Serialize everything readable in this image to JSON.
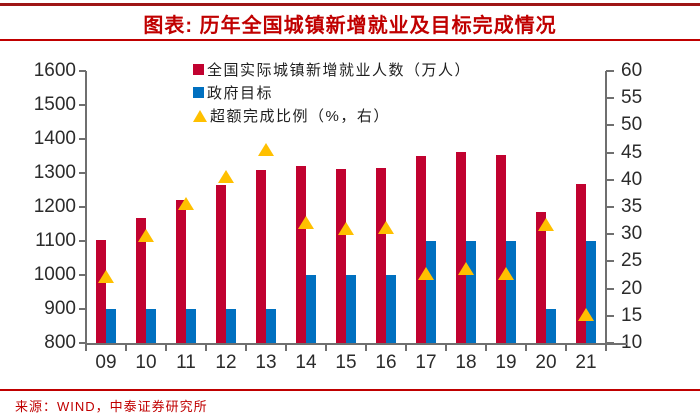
{
  "title": "图表: 历年全国城镇新增就业及目标完成情况",
  "source": "来源：WIND，中泰证券研究所",
  "colors": {
    "actual_bar": "#c10230",
    "target_bar": "#0070c0",
    "ratio_marker": "#ffc000",
    "title_red": "#c00000",
    "axis_gray": "#6f6f6f"
  },
  "chart_data": {
    "type": "bar",
    "title": "图表: 历年全国城镇新增就业及目标完成情况",
    "categories": [
      "09",
      "10",
      "11",
      "12",
      "13",
      "14",
      "15",
      "16",
      "17",
      "18",
      "19",
      "20",
      "21"
    ],
    "series": [
      {
        "name": "全国实际城镇新增就业人数（万人）",
        "type": "bar",
        "axis": "left",
        "color": "#c10230",
        "values": [
          1102,
          1168,
          1221,
          1266,
          1310,
          1322,
          1312,
          1314,
          1351,
          1361,
          1352,
          1186,
          1269
        ]
      },
      {
        "name": "政府目标",
        "type": "bar",
        "axis": "left",
        "color": "#0070c0",
        "values": [
          900,
          900,
          900,
          900,
          900,
          1000,
          1000,
          1000,
          1100,
          1100,
          1100,
          900,
          1100
        ]
      },
      {
        "name": "超额完成比例（%，右）",
        "type": "triangle",
        "axis": "right",
        "color": "#ffc000",
        "values": [
          22.4,
          29.8,
          35.7,
          40.7,
          45.6,
          32.2,
          31.2,
          31.4,
          22.8,
          23.7,
          22.9,
          31.8,
          15.4
        ]
      }
    ],
    "left_axis": {
      "min": 800,
      "max": 1600,
      "step": 100,
      "tick_labels": [
        "800",
        "900",
        "1000",
        "1100",
        "1200",
        "1300",
        "1400",
        "1500",
        "1600"
      ]
    },
    "right_axis": {
      "min": 10,
      "max": 60,
      "step": 5,
      "tick_labels": [
        "10",
        "15",
        "20",
        "25",
        "30",
        "35",
        "40",
        "45",
        "50",
        "55",
        "60"
      ]
    },
    "legend_position": "top-left-inside",
    "grid": "off"
  }
}
